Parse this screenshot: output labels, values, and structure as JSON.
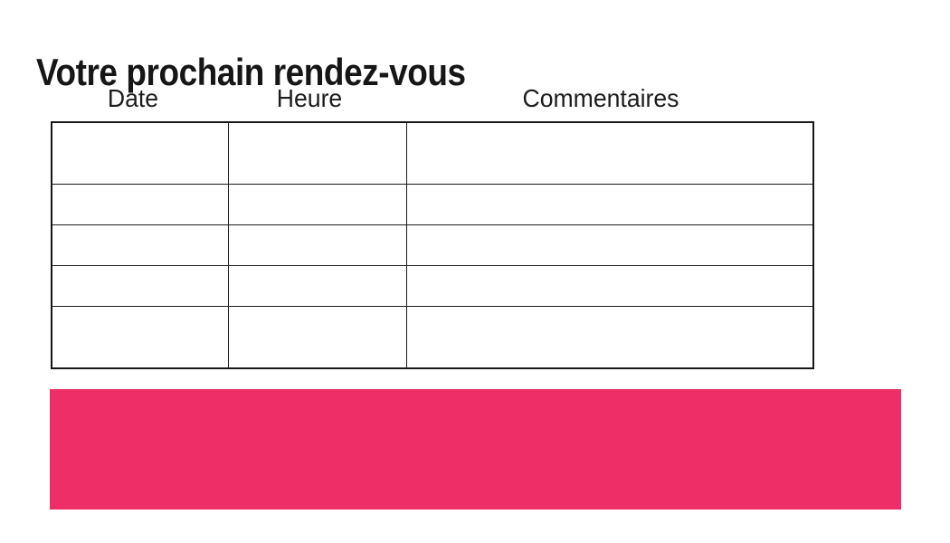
{
  "page": {
    "title": "Votre prochain rendez-vous"
  },
  "table": {
    "columns": [
      {
        "label": "Date"
      },
      {
        "label": "Heure"
      },
      {
        "label": "Commentaires"
      }
    ],
    "rows": [
      [
        "",
        "",
        ""
      ],
      [
        "",
        "",
        ""
      ],
      [
        "",
        "",
        ""
      ],
      [
        "",
        "",
        ""
      ],
      [
        "",
        "",
        ""
      ]
    ]
  },
  "footer": {
    "highlight_color": "#ED2E67"
  }
}
